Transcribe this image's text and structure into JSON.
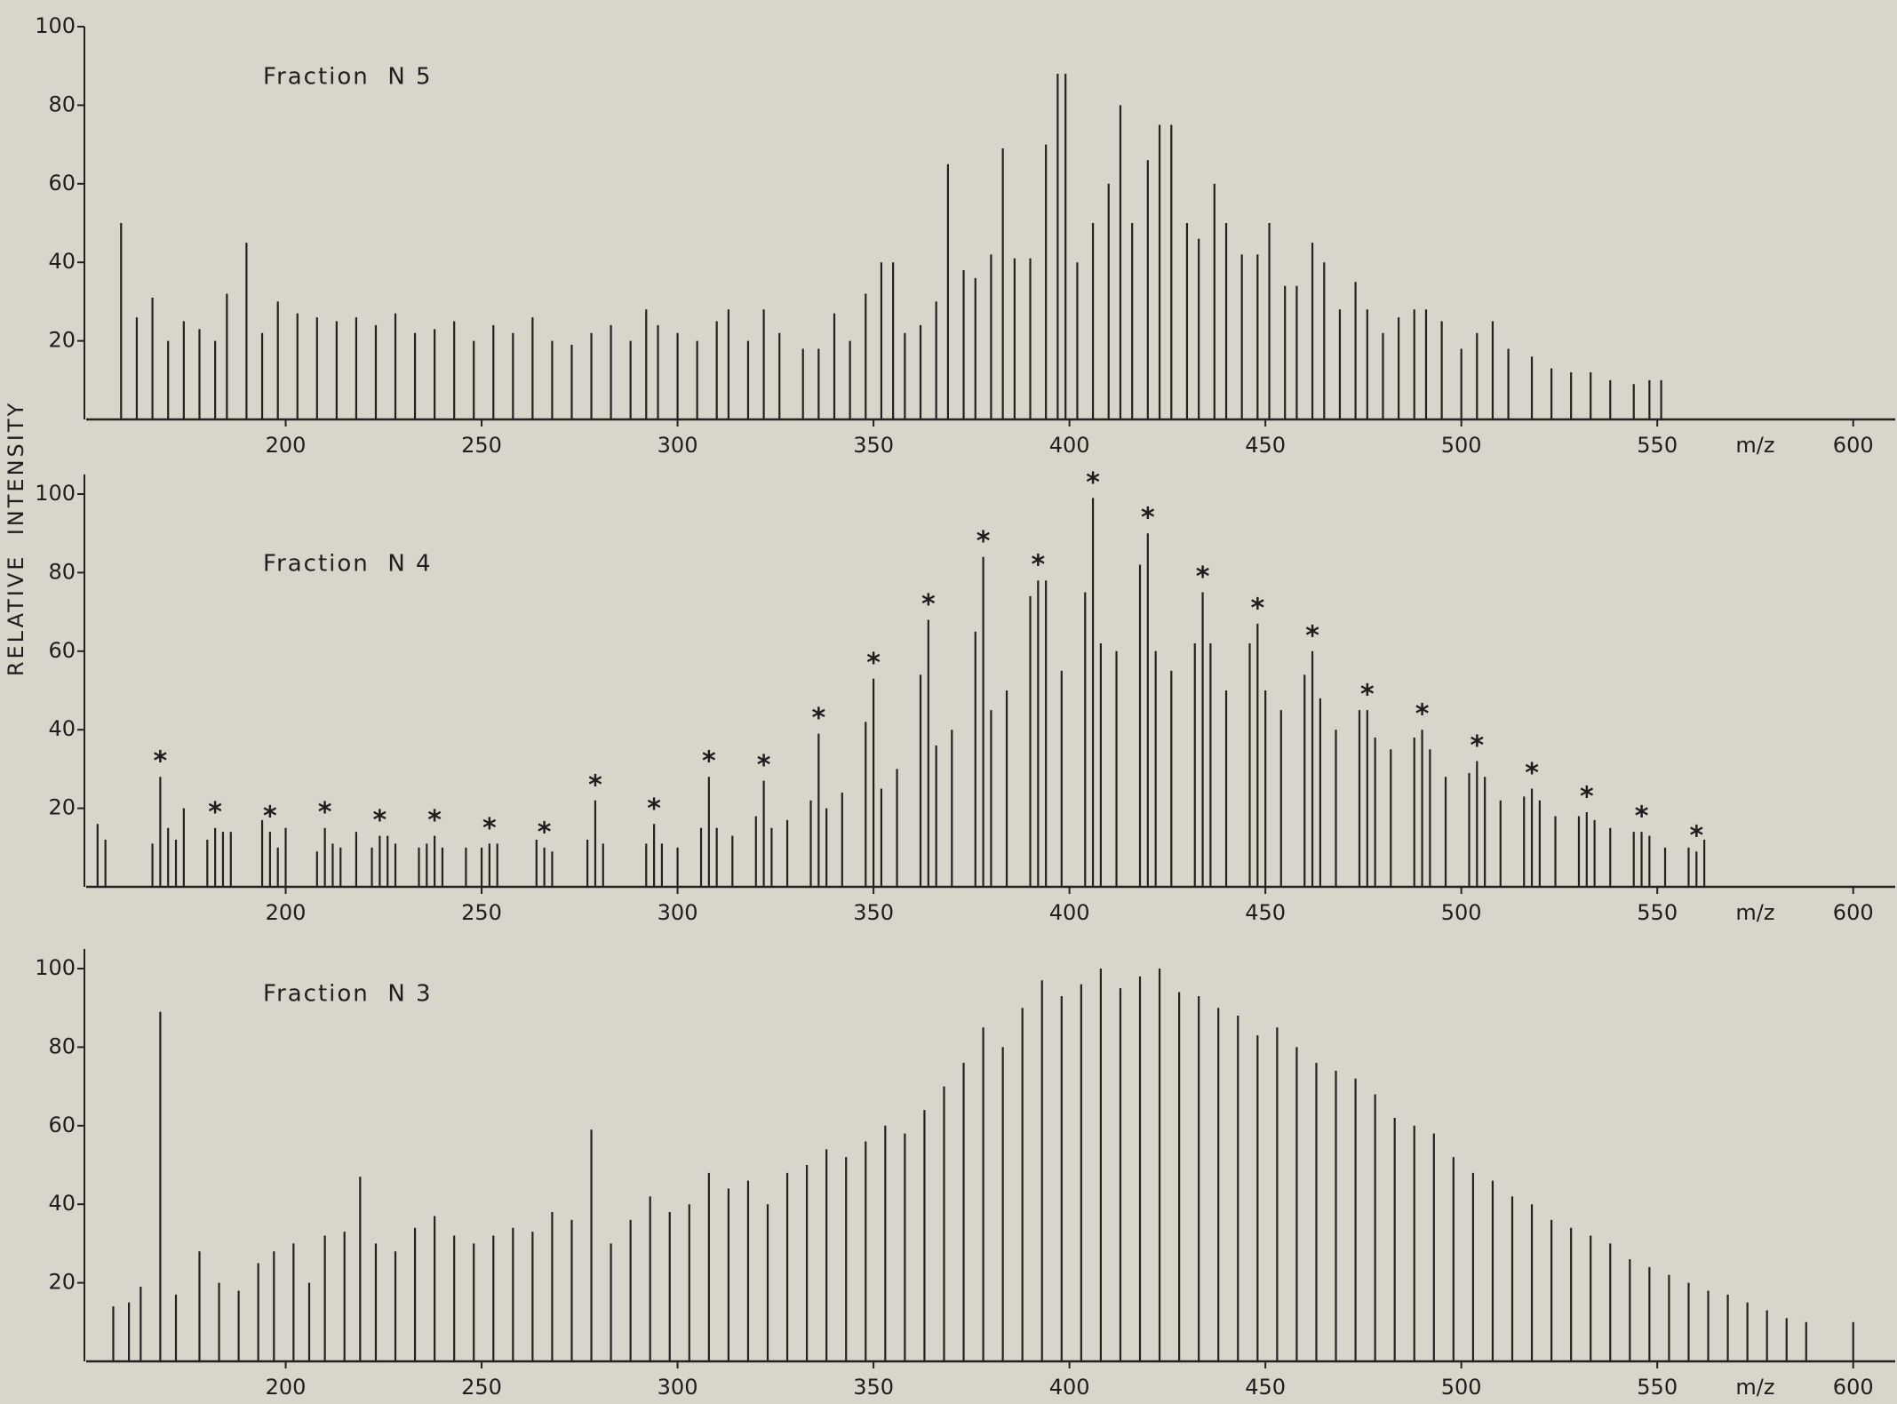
{
  "chart_data": [
    {
      "type": "stem",
      "title": "Fraction  N 5",
      "xlabel": "m/z",
      "color": "#222222",
      "xlim": [
        150,
        608
      ],
      "ylim": [
        0,
        100
      ],
      "xticks": [
        200,
        250,
        300,
        350,
        400,
        450,
        500,
        550,
        600
      ],
      "yticks": [
        20,
        40,
        60,
        80,
        100
      ],
      "x": [
        158,
        162,
        166,
        170,
        174,
        178,
        182,
        185,
        190,
        194,
        198,
        203,
        208,
        213,
        218,
        223,
        228,
        233,
        238,
        243,
        248,
        253,
        258,
        263,
        268,
        273,
        278,
        283,
        288,
        292,
        295,
        300,
        305,
        310,
        313,
        318,
        322,
        326,
        332,
        336,
        340,
        344,
        348,
        352,
        355,
        358,
        362,
        366,
        369,
        373,
        376,
        380,
        383,
        386,
        390,
        394,
        397,
        399,
        402,
        406,
        410,
        413,
        416,
        420,
        423,
        426,
        430,
        433,
        437,
        440,
        444,
        448,
        451,
        455,
        458,
        462,
        465,
        469,
        473,
        476,
        480,
        484,
        488,
        491,
        495,
        500,
        504,
        508,
        512,
        518,
        523,
        528,
        533,
        538,
        544,
        548,
        551
      ],
      "values": [
        50,
        26,
        31,
        20,
        25,
        23,
        20,
        32,
        45,
        22,
        30,
        27,
        26,
        25,
        26,
        24,
        27,
        22,
        23,
        25,
        20,
        24,
        22,
        26,
        20,
        19,
        22,
        24,
        20,
        28,
        24,
        22,
        20,
        25,
        28,
        20,
        28,
        22,
        18,
        18,
        27,
        20,
        32,
        40,
        40,
        22,
        24,
        30,
        65,
        38,
        36,
        42,
        69,
        41,
        41,
        70,
        88,
        88,
        40,
        50,
        60,
        80,
        50,
        66,
        75,
        75,
        50,
        46,
        60,
        50,
        42,
        42,
        50,
        34,
        34,
        45,
        40,
        28,
        35,
        28,
        22,
        26,
        28,
        28,
        25,
        18,
        22,
        25,
        18,
        16,
        13,
        12,
        12,
        10,
        9,
        10,
        10
      ]
    },
    {
      "type": "stem",
      "title": "Fraction  N 4",
      "xlabel": "m/z",
      "ylabel": "RELATIVE  INTENSITY",
      "color": "#222222",
      "xlim": [
        150,
        608
      ],
      "ylim": [
        0,
        105
      ],
      "xticks": [
        200,
        250,
        300,
        350,
        400,
        450,
        500,
        550,
        600
      ],
      "yticks": [
        20,
        40,
        60,
        80,
        100
      ],
      "x": [
        152,
        154,
        166,
        168,
        170,
        172,
        174,
        180,
        182,
        184,
        186,
        194,
        196,
        198,
        200,
        208,
        210,
        212,
        214,
        218,
        222,
        224,
        226,
        228,
        234,
        236,
        238,
        240,
        246,
        250,
        252,
        254,
        264,
        266,
        268,
        277,
        279,
        281,
        292,
        294,
        296,
        300,
        306,
        308,
        310,
        314,
        320,
        322,
        324,
        328,
        334,
        336,
        338,
        342,
        348,
        350,
        352,
        356,
        362,
        364,
        366,
        370,
        376,
        378,
        380,
        384,
        390,
        392,
        394,
        398,
        404,
        406,
        408,
        412,
        418,
        420,
        422,
        426,
        432,
        434,
        436,
        440,
        446,
        448,
        450,
        454,
        460,
        462,
        464,
        468,
        474,
        476,
        478,
        482,
        488,
        490,
        492,
        496,
        502,
        504,
        506,
        510,
        516,
        518,
        520,
        524,
        530,
        532,
        534,
        538,
        544,
        546,
        548,
        552,
        558,
        560,
        562
      ],
      "values": [
        16,
        12,
        11,
        28,
        15,
        12,
        20,
        12,
        15,
        14,
        14,
        17,
        14,
        10,
        15,
        9,
        15,
        11,
        10,
        14,
        10,
        13,
        13,
        11,
        10,
        11,
        13,
        10,
        10,
        10,
        11,
        11,
        12,
        10,
        9,
        12,
        22,
        11,
        11,
        16,
        11,
        10,
        15,
        28,
        15,
        13,
        18,
        27,
        15,
        17,
        22,
        39,
        20,
        24,
        42,
        53,
        25,
        30,
        54,
        68,
        36,
        40,
        65,
        84,
        45,
        50,
        74,
        78,
        78,
        55,
        75,
        99,
        62,
        60,
        82,
        90,
        60,
        55,
        62,
        75,
        62,
        50,
        62,
        67,
        50,
        45,
        54,
        60,
        48,
        40,
        45,
        45,
        38,
        35,
        38,
        40,
        35,
        28,
        29,
        32,
        28,
        22,
        23,
        25,
        22,
        18,
        18,
        19,
        17,
        15,
        14,
        14,
        13,
        10,
        10,
        9,
        12
      ],
      "annotations": [
        {
          "x": 168,
          "label": "*"
        },
        {
          "x": 182,
          "label": "*"
        },
        {
          "x": 196,
          "label": "*"
        },
        {
          "x": 210,
          "label": "*"
        },
        {
          "x": 224,
          "label": "*"
        },
        {
          "x": 238,
          "label": "*"
        },
        {
          "x": 252,
          "label": "*"
        },
        {
          "x": 266,
          "label": "*"
        },
        {
          "x": 279,
          "label": "*"
        },
        {
          "x": 294,
          "label": "*"
        },
        {
          "x": 308,
          "label": "*"
        },
        {
          "x": 322,
          "label": "*"
        },
        {
          "x": 336,
          "label": "*"
        },
        {
          "x": 350,
          "label": "*"
        },
        {
          "x": 364,
          "label": "*"
        },
        {
          "x": 378,
          "label": "*"
        },
        {
          "x": 392,
          "label": "*"
        },
        {
          "x": 406,
          "label": "*"
        },
        {
          "x": 420,
          "label": "*"
        },
        {
          "x": 434,
          "label": "*"
        },
        {
          "x": 448,
          "label": "*"
        },
        {
          "x": 462,
          "label": "*"
        },
        {
          "x": 476,
          "label": "*"
        },
        {
          "x": 490,
          "label": "*"
        },
        {
          "x": 504,
          "label": "*"
        },
        {
          "x": 518,
          "label": "*"
        },
        {
          "x": 532,
          "label": "*"
        },
        {
          "x": 546,
          "label": "*"
        },
        {
          "x": 560,
          "label": "*"
        }
      ]
    },
    {
      "type": "stem",
      "title": "Fraction  N 3",
      "xlabel": "m/z",
      "color": "#222222",
      "xlim": [
        150,
        608
      ],
      "ylim": [
        0,
        105
      ],
      "xticks": [
        200,
        250,
        300,
        350,
        400,
        450,
        500,
        550,
        600
      ],
      "yticks": [
        20,
        40,
        60,
        80,
        100
      ],
      "x": [
        156,
        160,
        163,
        168,
        172,
        178,
        183,
        188,
        193,
        197,
        202,
        206,
        210,
        215,
        219,
        223,
        228,
        233,
        238,
        243,
        248,
        253,
        258,
        263,
        268,
        273,
        278,
        283,
        288,
        293,
        298,
        303,
        308,
        313,
        318,
        323,
        328,
        333,
        338,
        343,
        348,
        353,
        358,
        363,
        368,
        373,
        378,
        383,
        388,
        393,
        398,
        403,
        408,
        413,
        418,
        423,
        428,
        433,
        438,
        443,
        448,
        453,
        458,
        463,
        468,
        473,
        478,
        483,
        488,
        493,
        498,
        503,
        508,
        513,
        518,
        523,
        528,
        533,
        538,
        543,
        548,
        553,
        558,
        563,
        568,
        573,
        578,
        583,
        588,
        600
      ],
      "values": [
        14,
        15,
        19,
        89,
        17,
        28,
        20,
        18,
        25,
        28,
        30,
        20,
        32,
        33,
        47,
        30,
        28,
        34,
        37,
        32,
        30,
        32,
        34,
        33,
        38,
        36,
        59,
        30,
        36,
        42,
        38,
        40,
        48,
        44,
        46,
        40,
        48,
        50,
        54,
        52,
        56,
        60,
        58,
        64,
        70,
        76,
        85,
        80,
        90,
        97,
        93,
        96,
        100,
        95,
        98,
        100,
        94,
        93,
        90,
        88,
        83,
        85,
        80,
        76,
        74,
        72,
        68,
        62,
        60,
        58,
        52,
        48,
        46,
        42,
        40,
        36,
        34,
        32,
        30,
        26,
        24,
        22,
        20,
        18,
        17,
        15,
        13,
        11,
        10,
        10
      ]
    }
  ]
}
